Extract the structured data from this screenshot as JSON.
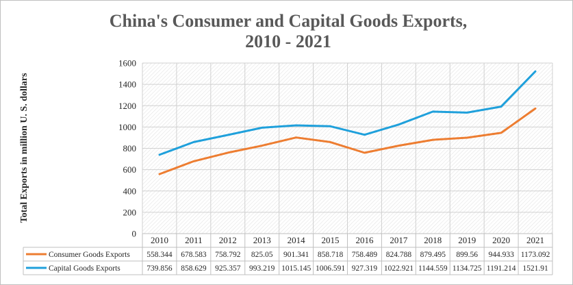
{
  "chart_data": {
    "type": "line",
    "title_line1": "China's Consumer and Capital Goods Exports,",
    "title_line2": "2010 - 2021",
    "ylabel": "Total Exports in million U. S. dollars",
    "xlabel": "",
    "ylim": [
      0,
      1600
    ],
    "yticks": [
      0,
      200,
      400,
      600,
      800,
      1000,
      1200,
      1400,
      1600
    ],
    "categories": [
      "2010",
      "2011",
      "2012",
      "2013",
      "2014",
      "2015",
      "2016",
      "2017",
      "2018",
      "2019",
      "2020",
      "2021"
    ],
    "series": [
      {
        "name": "Consumer Goods Exports",
        "color": "#ED7D31",
        "values": [
          558.344,
          678.583,
          758.792,
          825.05,
          901.341,
          858.718,
          758.489,
          824.788,
          879.495,
          899.56,
          944.933,
          1173.092
        ],
        "labels": [
          "558.344",
          "678.583",
          "758.792",
          "825.05",
          "901.341",
          "858.718",
          "758.489",
          "824.788",
          "879.495",
          "899.56",
          "944.933",
          "1173.092"
        ]
      },
      {
        "name": "Capital Goods Exports",
        "color": "#1FA0DB",
        "values": [
          739.856,
          858.629,
          925.357,
          993.219,
          1015.145,
          1006.591,
          927.319,
          1022.921,
          1144.559,
          1134.725,
          1191.214,
          1521.91
        ],
        "labels": [
          "739.856",
          "858.629",
          "925.357",
          "993.219",
          "1015.145",
          "1006.591",
          "927.319",
          "1022.921",
          "1144.559",
          "1134.725",
          "1191.214",
          "1521.91"
        ]
      }
    ],
    "grid": true,
    "legend": "data-table",
    "plot_pattern": "diagonal-hatch"
  }
}
